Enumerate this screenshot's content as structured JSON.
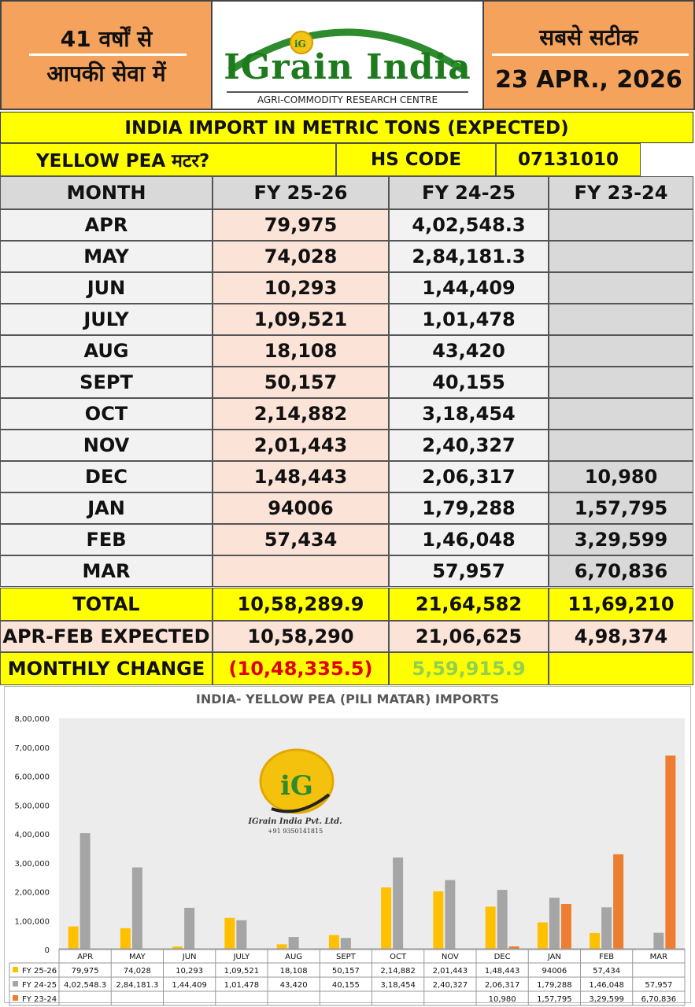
{
  "header": {
    "left_line1": "41 वर्षों से",
    "left_line2": "आपकी सेवा में",
    "brand_name": "IGrain India",
    "brand_sub": "AGRI-COMMODITY RESEARCH CENTRE",
    "logo_text": "iG",
    "right_line1": "सबसे सटीक",
    "date": "23 APR., 2026",
    "colors": {
      "panel": "#f5a25c",
      "brand_green": "#1d7a1d"
    }
  },
  "table": {
    "title": "INDIA IMPORT IN METRIC TONS (EXPECTED)",
    "product_label": "YELLOW PEA मटर?",
    "hs_code_label": "HS CODE",
    "hs_code_value": "07131010",
    "columns": [
      "MONTH",
      "FY 25-26",
      "FY 24-25",
      "FY 23-24"
    ],
    "rows": [
      [
        "APR",
        "79,975",
        "4,02,548.3",
        ""
      ],
      [
        "MAY",
        "74,028",
        "2,84,181.3",
        ""
      ],
      [
        "JUN",
        "10,293",
        "1,44,409",
        ""
      ],
      [
        "JULY",
        "1,09,521",
        "1,01,478",
        ""
      ],
      [
        "AUG",
        "18,108",
        "43,420",
        ""
      ],
      [
        "SEPT",
        "50,157",
        "40,155",
        ""
      ],
      [
        "OCT",
        "2,14,882",
        "3,18,454",
        ""
      ],
      [
        "NOV",
        "2,01,443",
        "2,40,327",
        ""
      ],
      [
        "DEC",
        "1,48,443",
        "2,06,317",
        "10,980"
      ],
      [
        "JAN",
        "94006",
        "1,79,288",
        "1,57,795"
      ],
      [
        "FEB",
        "57,434",
        "1,46,048",
        "3,29,599"
      ],
      [
        "MAR",
        "",
        "57,957",
        "6,70,836"
      ]
    ],
    "total": [
      "TOTAL",
      "10,58,289.9",
      "21,64,582",
      "11,69,210"
    ],
    "expected": [
      "APR-FEB EXPECTED",
      "10,58,290",
      "21,06,625",
      "4,98,374"
    ],
    "change": [
      "MONTHLY CHANGE",
      "(10,48,335.5)",
      "5,59,915.9",
      ""
    ],
    "colors": {
      "yellow": "#ffff00",
      "peach": "#fbe3d7",
      "grey": "#d9d9d9",
      "negative": "#e00000",
      "positive": "#92d050"
    }
  },
  "watermark": {
    "logo_text": "iG",
    "company": "IGrain India Pvt. Ltd.",
    "phone": "+91 9350141815"
  },
  "chart_data": {
    "type": "bar",
    "title": "INDIA- YELLOW PEA (PILI MATAR) IMPORTS",
    "categories": [
      "APR",
      "MAY",
      "JUN",
      "JULY",
      "AUG",
      "SEPT",
      "OCT",
      "NOV",
      "DEC",
      "JAN",
      "FEB",
      "MAR"
    ],
    "series": [
      {
        "name": "FY 25-26",
        "color": "#ffc000",
        "values": [
          79975,
          74028,
          10293,
          109521,
          18108,
          50157,
          214882,
          201443,
          148443,
          94006,
          57434,
          null
        ],
        "labels": [
          "79,975",
          "74,028",
          "10,293",
          "1,09,521",
          "18,108",
          "50,157",
          "2,14,882",
          "2,01,443",
          "1,48,443",
          "94006",
          "57,434",
          ""
        ]
      },
      {
        "name": "FY 24-25",
        "color": "#a5a5a5",
        "values": [
          402548.3,
          284181.3,
          144409,
          101478,
          43420,
          40155,
          318454,
          240327,
          206317,
          179288,
          146048,
          57957
        ],
        "labels": [
          "4,02,548.3",
          "2,84,181.3",
          "1,44,409",
          "1,01,478",
          "43,420",
          "40,155",
          "3,18,454",
          "2,40,327",
          "2,06,317",
          "1,79,288",
          "1,46,048",
          "57,957"
        ]
      },
      {
        "name": "FY 23-24",
        "color": "#ed7d31",
        "values": [
          null,
          null,
          null,
          null,
          null,
          null,
          null,
          null,
          10980,
          157795,
          329599,
          670836
        ],
        "labels": [
          "",
          "",
          "",
          "",
          "",
          "",
          "",
          "",
          "10,980",
          "1,57,795",
          "3,29,599",
          "6,70,836"
        ]
      }
    ],
    "ylim": [
      0,
      800000
    ],
    "yticks": [
      0,
      100000,
      200000,
      300000,
      400000,
      500000,
      600000,
      700000,
      800000
    ],
    "ytick_labels": [
      "0",
      "1,00,000",
      "2,00,000",
      "3,00,000",
      "4,00,000",
      "5,00,000",
      "6,00,000",
      "7,00,000",
      "8,00,000"
    ],
    "grid": false,
    "legend": "data-table-below"
  }
}
